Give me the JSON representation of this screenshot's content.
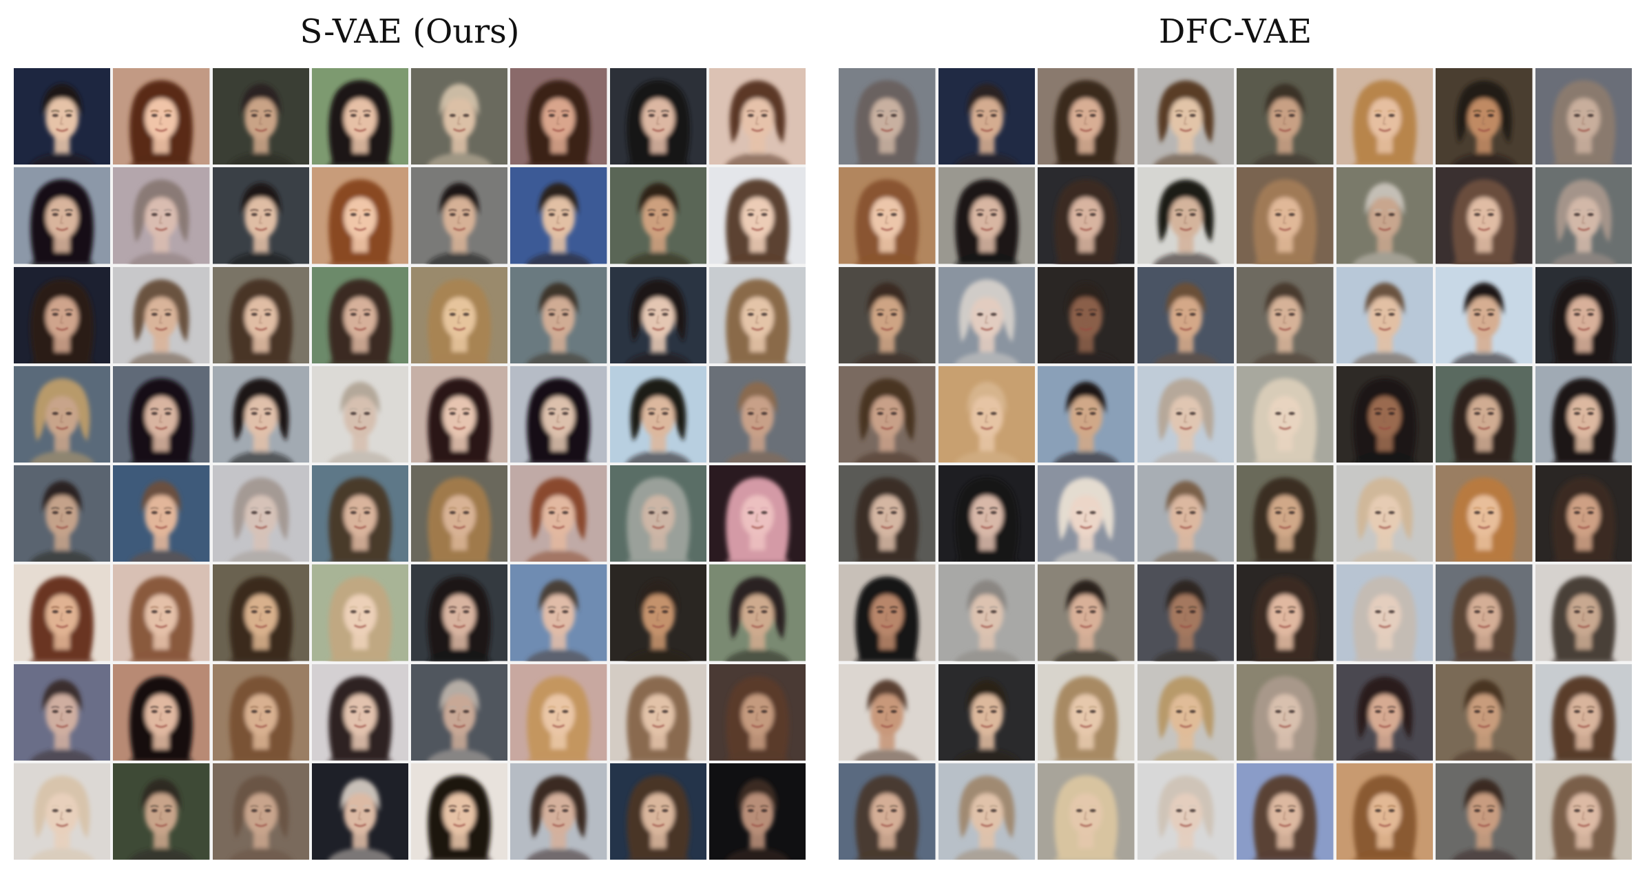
{
  "panels": [
    {
      "title": "S-VAE (Ours)",
      "rows": 8,
      "cols": 8,
      "samples": [
        {
          "bg": "#1d2640",
          "hair": "#1e1714",
          "skin": "#e6c3a8",
          "kind": "short"
        },
        {
          "bg": "#c29a84",
          "hair": "#5a2a16",
          "skin": "#f0c4a8",
          "kind": "long"
        },
        {
          "bg": "#3a3e34",
          "hair": "#2a2420",
          "skin": "#c9a386",
          "kind": "short"
        },
        {
          "bg": "#7d9a70",
          "hair": "#1b1512",
          "skin": "#e6c0a6",
          "kind": "long"
        },
        {
          "bg": "#6a6a5e",
          "hair": "#cbbba4",
          "skin": "#dbc0a6",
          "kind": "short"
        },
        {
          "bg": "#8a6a6a",
          "hair": "#3a2018",
          "skin": "#d9a58c",
          "kind": "long"
        },
        {
          "bg": "#2c3038",
          "hair": "#161314",
          "skin": "#dcb7a2",
          "kind": "long"
        },
        {
          "bg": "#dcc2b4",
          "hair": "#5c3828",
          "skin": "#e6c2aa",
          "kind": "bob"
        },
        {
          "bg": "#8c98a8",
          "hair": "#141112",
          "skin": "#d8b49c",
          "kind": "long"
        },
        {
          "bg": "#b4a6ac",
          "hair": "#8a7a76",
          "skin": "#d9bcb0",
          "kind": "bob"
        },
        {
          "bg": "#3a4046",
          "hair": "#1a1512",
          "skin": "#dfbda4",
          "kind": "short"
        },
        {
          "bg": "#c89c7a",
          "hair": "#8a4a24",
          "skin": "#f0c6a8",
          "kind": "long"
        },
        {
          "bg": "#7a7a78",
          "hair": "#1a1412",
          "skin": "#d6b196",
          "kind": "short"
        },
        {
          "bg": "#3c5a96",
          "hair": "#2a221c",
          "skin": "#e2c0a4",
          "kind": "short"
        },
        {
          "bg": "#5a6656",
          "hair": "#2e2418",
          "skin": "#cda07e",
          "kind": "short"
        },
        {
          "bg": "#e4e6ea",
          "hair": "#5c4230",
          "skin": "#ecccb6",
          "kind": "long"
        },
        {
          "bg": "#1c2030",
          "hair": "#2a1c18",
          "skin": "#cfa48c",
          "kind": "long"
        },
        {
          "bg": "#c8c8ca",
          "hair": "#6a5240",
          "skin": "#d9b49a",
          "kind": "bob"
        },
        {
          "bg": "#7a7466",
          "hair": "#4a3426",
          "skin": "#e0bda4",
          "kind": "long"
        },
        {
          "bg": "#6c8a6a",
          "hair": "#3a2a22",
          "skin": "#d6b09a",
          "kind": "long"
        },
        {
          "bg": "#9a8a6c",
          "hair": "#a88452",
          "skin": "#e6c49c",
          "kind": "long"
        },
        {
          "bg": "#6a7a80",
          "hair": "#3e342c",
          "skin": "#d0ac94",
          "kind": "short"
        },
        {
          "bg": "#2a3442",
          "hair": "#1e1614",
          "skin": "#e4c6b2",
          "kind": "bob"
        },
        {
          "bg": "#c8ccd0",
          "hair": "#8a6a4a",
          "skin": "#e4c4a8",
          "kind": "long"
        },
        {
          "bg": "#5a6a7a",
          "hair": "#b89a6a",
          "skin": "#c8a48a",
          "kind": "bob"
        },
        {
          "bg": "#606a78",
          "hair": "#141012",
          "skin": "#d8b4a0",
          "kind": "long"
        },
        {
          "bg": "#a2aab2",
          "hair": "#1a1414",
          "skin": "#e0c0aa",
          "kind": "bob"
        },
        {
          "bg": "#dcdad6",
          "hair": "#b4a89a",
          "skin": "#d6c0b0",
          "kind": "short"
        },
        {
          "bg": "#c6b0a6",
          "hair": "#2a1814",
          "skin": "#e6c4b0",
          "kind": "long"
        },
        {
          "bg": "#b6bcc6",
          "hair": "#121012",
          "skin": "#dcc0ac",
          "kind": "long"
        },
        {
          "bg": "#b8cfe0",
          "hair": "#1e1a18",
          "skin": "#dcb89e",
          "kind": "bob"
        },
        {
          "bg": "#6a7078",
          "hair": "#8a6a50",
          "skin": "#c8a088",
          "kind": "short"
        },
        {
          "bg": "#5a6470",
          "hair": "#2a2420",
          "skin": "#c4a28a",
          "kind": "short"
        },
        {
          "bg": "#3e5a7a",
          "hair": "#6a5040",
          "skin": "#e2b69a",
          "kind": "short"
        },
        {
          "bg": "#c4c4c8",
          "hair": "#a49a94",
          "skin": "#d6c2b8",
          "kind": "bob"
        },
        {
          "bg": "#5e7888",
          "hair": "#4a3a2c",
          "skin": "#d9b49c",
          "kind": "long"
        },
        {
          "bg": "#6a685c",
          "hair": "#a07a4c",
          "skin": "#d8b294",
          "kind": "long"
        },
        {
          "bg": "#c0aaa6",
          "hair": "#8a4a2e",
          "skin": "#e2b8a0",
          "kind": "bob"
        },
        {
          "bg": "#5a6e66",
          "hair": "#9aa09a",
          "skin": "#cdb6a6",
          "kind": "long"
        },
        {
          "bg": "#2a1a20",
          "hair": "#d49aa6",
          "skin": "#ecc0c0",
          "kind": "long"
        },
        {
          "bg": "#e6dcd2",
          "hair": "#6a3620",
          "skin": "#e0b292",
          "kind": "long"
        },
        {
          "bg": "#d8c0b4",
          "hair": "#8a5a3c",
          "skin": "#e4c0a8",
          "kind": "long"
        },
        {
          "bg": "#6a6250",
          "hair": "#3a2a1c",
          "skin": "#d8b08c",
          "kind": "long"
        },
        {
          "bg": "#a8b496",
          "hair": "#c0a882",
          "skin": "#ecd0b8",
          "kind": "long"
        },
        {
          "bg": "#343a40",
          "hair": "#1a1614",
          "skin": "#d8b4a0",
          "kind": "long"
        },
        {
          "bg": "#6f8cb2",
          "hair": "#4a4038",
          "skin": "#e0bca8",
          "kind": "short"
        },
        {
          "bg": "#2a2622",
          "hair": "#2a201a",
          "skin": "#c4926c",
          "kind": "short"
        },
        {
          "bg": "#7a8a72",
          "hair": "#2a2420",
          "skin": "#ceaa8e",
          "kind": "bob"
        },
        {
          "bg": "#6a6e88",
          "hair": "#3a2e2e",
          "skin": "#cfaea0",
          "kind": "short"
        },
        {
          "bg": "#b88a74",
          "hair": "#140f10",
          "skin": "#e0b8a0",
          "kind": "long"
        },
        {
          "bg": "#9a7e64",
          "hair": "#7a5234",
          "skin": "#d8b090",
          "kind": "long"
        },
        {
          "bg": "#d4d0d2",
          "hair": "#2e2220",
          "skin": "#e2c2ae",
          "kind": "long"
        },
        {
          "bg": "#50565e",
          "hair": "#b4aca4",
          "skin": "#c8a896",
          "kind": "short"
        },
        {
          "bg": "#c8a8a0",
          "hair": "#c4965e",
          "skin": "#eac6a6",
          "kind": "long"
        },
        {
          "bg": "#d4ccc4",
          "hair": "#8a6a50",
          "skin": "#e2c2a8",
          "kind": "long"
        },
        {
          "bg": "#4a3a34",
          "hair": "#5a3a2a",
          "skin": "#c49a7e",
          "kind": "long"
        },
        {
          "bg": "#dcd8d4",
          "hair": "#d8c4ac",
          "skin": "#e8d0bc",
          "kind": "bob"
        },
        {
          "bg": "#3e4a36",
          "hair": "#2e2a24",
          "skin": "#c8a48a",
          "kind": "short"
        },
        {
          "bg": "#7a6a5c",
          "hair": "#6a5444",
          "skin": "#c8a48c",
          "kind": "bob"
        },
        {
          "bg": "#1e2028",
          "hair": "#c8c0b8",
          "skin": "#dcbaa4",
          "kind": "short"
        },
        {
          "bg": "#e8e2dc",
          "hair": "#1e1410",
          "skin": "#e6c2a6",
          "kind": "long"
        },
        {
          "bg": "#b6bcc4",
          "hair": "#3a2c24",
          "skin": "#d4b09c",
          "kind": "bob"
        },
        {
          "bg": "#24344a",
          "hair": "#4a3628",
          "skin": "#d9b69c",
          "kind": "long"
        },
        {
          "bg": "#101012",
          "hair": "#3a2a22",
          "skin": "#b88e78",
          "kind": "short"
        }
      ]
    },
    {
      "title": "DFC-VAE",
      "rows": 8,
      "cols": 8,
      "samples": [
        {
          "bg": "#7a8088",
          "hair": "#6a6260",
          "skin": "#c8b0a0",
          "kind": "long"
        },
        {
          "bg": "#202a44",
          "hair": "#2a2220",
          "skin": "#d4ac90",
          "kind": "short"
        },
        {
          "bg": "#8a7a6e",
          "hair": "#3a2a1e",
          "skin": "#d8ae94",
          "kind": "long"
        },
        {
          "bg": "#b8b6b4",
          "hair": "#5a3e28",
          "skin": "#e2c4a8",
          "kind": "bob"
        },
        {
          "bg": "#5a5a4c",
          "hair": "#3a3026",
          "skin": "#c8a084",
          "kind": "short"
        },
        {
          "bg": "#d0b6a2",
          "hair": "#b8854c",
          "skin": "#e6bfa0",
          "kind": "long"
        },
        {
          "bg": "#4a3e30",
          "hair": "#221a14",
          "skin": "#c08a64",
          "kind": "bob"
        },
        {
          "bg": "#6a6e78",
          "hair": "#8a7a6e",
          "skin": "#c8ae9c",
          "kind": "long"
        },
        {
          "bg": "#b2865e",
          "hair": "#8a5430",
          "skin": "#ecc6aa",
          "kind": "long"
        },
        {
          "bg": "#9a9890",
          "hair": "#1a1414",
          "skin": "#d8b6a2",
          "kind": "long"
        },
        {
          "bg": "#2a2a2e",
          "hair": "#3a2c24",
          "skin": "#d8b4a0",
          "kind": "long"
        },
        {
          "bg": "#d6d6d2",
          "hair": "#1e1a16",
          "skin": "#d4b49c",
          "kind": "bob"
        },
        {
          "bg": "#7a6450",
          "hair": "#a07a56",
          "skin": "#e0b898",
          "kind": "long"
        },
        {
          "bg": "#7a7a6a",
          "hair": "#c4bfb6",
          "skin": "#c8a68e",
          "kind": "short"
        },
        {
          "bg": "#3a3030",
          "hair": "#6a4e3c",
          "skin": "#e0bca4",
          "kind": "long"
        },
        {
          "bg": "#6a7070",
          "hair": "#a4948a",
          "skin": "#d2b8a8",
          "kind": "bob"
        },
        {
          "bg": "#4e4a44",
          "hair": "#3a2c22",
          "skin": "#cea484",
          "kind": "short"
        },
        {
          "bg": "#8a94a0",
          "hair": "#d0ccc8",
          "skin": "#e2ccc0",
          "kind": "bob"
        },
        {
          "bg": "#2a2624",
          "hair": "#2a201c",
          "skin": "#8a5e48",
          "kind": "short"
        },
        {
          "bg": "#4a5464",
          "hair": "#6a5038",
          "skin": "#d4a888",
          "kind": "short"
        },
        {
          "bg": "#6e6a60",
          "hair": "#4a3a2e",
          "skin": "#d6b298",
          "kind": "short"
        },
        {
          "bg": "#b8c8d8",
          "hair": "#6a5240",
          "skin": "#e2c0a4",
          "kind": "short"
        },
        {
          "bg": "#c8d8e6",
          "hair": "#1e1814",
          "skin": "#d6ae92",
          "kind": "short"
        },
        {
          "bg": "#2a2e34",
          "hair": "#1e1816",
          "skin": "#d8b09a",
          "kind": "long"
        },
        {
          "bg": "#7a6a60",
          "hair": "#4a3424",
          "skin": "#c8a088",
          "kind": "bob"
        },
        {
          "bg": "#c8a070",
          "hair": "#d6b48c",
          "skin": "#e6c4a4",
          "kind": "short"
        },
        {
          "bg": "#8aa0b8",
          "hair": "#1e1814",
          "skin": "#d0a888",
          "kind": "short"
        },
        {
          "bg": "#c0ccd8",
          "hair": "#b6a89a",
          "skin": "#e0c6b2",
          "kind": "bob"
        },
        {
          "bg": "#a8a89e",
          "hair": "#d8ccb8",
          "skin": "#e8d4c0",
          "kind": "long"
        },
        {
          "bg": "#2e2a26",
          "hair": "#1a1412",
          "skin": "#9a6a50",
          "kind": "long"
        },
        {
          "bg": "#5a6a60",
          "hair": "#2e241e",
          "skin": "#d0ac92",
          "kind": "long"
        },
        {
          "bg": "#a0aab4",
          "hair": "#1c1816",
          "skin": "#dcb8a0",
          "kind": "long"
        },
        {
          "bg": "#5a5a56",
          "hair": "#3a2e26",
          "skin": "#d4b6a2",
          "kind": "long"
        },
        {
          "bg": "#1e1e22",
          "hair": "#161214",
          "skin": "#d8b8a8",
          "kind": "long"
        },
        {
          "bg": "#8a92a0",
          "hair": "#e4dcd0",
          "skin": "#ecd6c8",
          "kind": "bob"
        },
        {
          "bg": "#a8aeb4",
          "hair": "#7a6048",
          "skin": "#dcb8a0",
          "kind": "short"
        },
        {
          "bg": "#6a6a5a",
          "hair": "#3a2e24",
          "skin": "#d0a888",
          "kind": "long"
        },
        {
          "bg": "#c8c8c6",
          "hair": "#d0b89a",
          "skin": "#e6ccb4",
          "kind": "bob"
        },
        {
          "bg": "#9a7e62",
          "hair": "#b87a40",
          "skin": "#e8be9a",
          "kind": "long"
        },
        {
          "bg": "#2a2624",
          "hair": "#3a2c24",
          "skin": "#cea084",
          "kind": "long"
        },
        {
          "bg": "#c8c0b8",
          "hair": "#141212",
          "skin": "#b8866a",
          "kind": "long"
        },
        {
          "bg": "#a8a8a6",
          "hair": "#8a8682",
          "skin": "#dcc2b0",
          "kind": "short"
        },
        {
          "bg": "#8a8478",
          "hair": "#2a201a",
          "skin": "#d8b098",
          "kind": "short"
        },
        {
          "bg": "#4e5058",
          "hair": "#2e2620",
          "skin": "#a4785e",
          "kind": "short"
        },
        {
          "bg": "#2a2624",
          "hair": "#3a2a20",
          "skin": "#e0b8a0",
          "kind": "long"
        },
        {
          "bg": "#b8c4d2",
          "hair": "#c4bcb4",
          "skin": "#e4cebe",
          "kind": "long"
        },
        {
          "bg": "#6a7078",
          "hair": "#5a4434",
          "skin": "#d4ae96",
          "kind": "long"
        },
        {
          "bg": "#d6d2ce",
          "hair": "#4a4038",
          "skin": "#c8a890",
          "kind": "long"
        },
        {
          "bg": "#dcd6d0",
          "hair": "#5a4030",
          "skin": "#c8987a",
          "kind": "short"
        },
        {
          "bg": "#2a2a2c",
          "hair": "#2a2018",
          "skin": "#dcb89c",
          "kind": "short"
        },
        {
          "bg": "#d8d4cc",
          "hair": "#a88a64",
          "skin": "#e6c8ac",
          "kind": "long"
        },
        {
          "bg": "#c6c4c0",
          "hair": "#b89a6a",
          "skin": "#e0bc98",
          "kind": "bob"
        },
        {
          "bg": "#8a8470",
          "hair": "#a8988a",
          "skin": "#d8c0ae",
          "kind": "long"
        },
        {
          "bg": "#4a4850",
          "hair": "#2a1e1c",
          "skin": "#d6aa92",
          "kind": "bob"
        },
        {
          "bg": "#7a6a56",
          "hair": "#4a3424",
          "skin": "#c89c7c",
          "kind": "short"
        },
        {
          "bg": "#c8ccd0",
          "hair": "#5a3e2c",
          "skin": "#d8b49c",
          "kind": "long"
        },
        {
          "bg": "#5a6a80",
          "hair": "#4a3a30",
          "skin": "#d4ae96",
          "kind": "long"
        },
        {
          "bg": "#b8c0c8",
          "hair": "#a08a72",
          "skin": "#e0c2aa",
          "kind": "bob"
        },
        {
          "bg": "#a8a49a",
          "hair": "#d8c4a0",
          "skin": "#e4c8ac",
          "kind": "long"
        },
        {
          "bg": "#d8d8d8",
          "hair": "#cfc4b8",
          "skin": "#e4cebe",
          "kind": "bob"
        },
        {
          "bg": "#8a9cc8",
          "hair": "#5a4234",
          "skin": "#dcb8a0",
          "kind": "long"
        },
        {
          "bg": "#c89a70",
          "hair": "#8a5a30",
          "skin": "#e2b894",
          "kind": "long"
        },
        {
          "bg": "#6a6a68",
          "hair": "#3a2c24",
          "skin": "#c89c80",
          "kind": "short"
        },
        {
          "bg": "#c8c0b4",
          "hair": "#7a5e48",
          "skin": "#dcbaa4",
          "kind": "long"
        }
      ]
    }
  ]
}
